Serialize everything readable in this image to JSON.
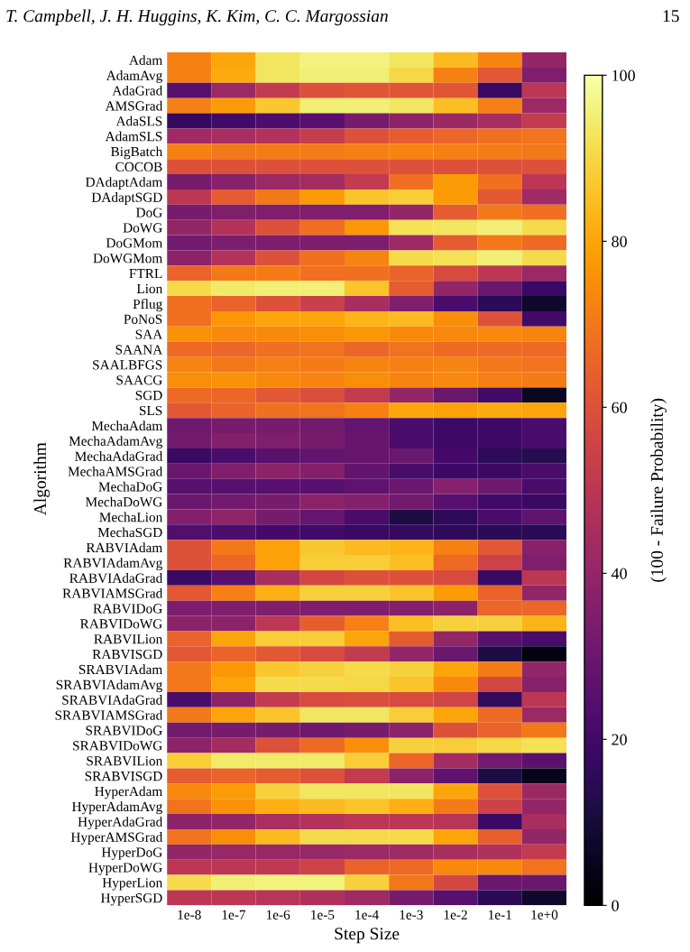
{
  "chart_data": {
    "type": "heatmap",
    "xlabel": "Step Size",
    "ylabel": "Algorithm",
    "clabel": "(100 - Failure Probability)",
    "annotations": [
      "T. Campbell, J. H. Huggins, K. Kim, C. C. Margossian",
      "15"
    ],
    "categories": [
      "1e-8",
      "1e-7",
      "1e-6",
      "1e-5",
      "1e-4",
      "1e-3",
      "1e-2",
      "1e-1",
      "1e+0"
    ],
    "y_categories": [
      "Adam",
      "AdamAvg",
      "AdaGrad",
      "AMSGrad",
      "AdaSLS",
      "AdamSLS",
      "BigBatch",
      "COCOB",
      "DAdaptAdam",
      "DAdaptSGD",
      "DoG",
      "DoWG",
      "DoGMom",
      "DoWGMom",
      "FTRL",
      "Lion",
      "Pflug",
      "PoNoS",
      "SAA",
      "SAANA",
      "SAALBFGS",
      "SAACG",
      "SGD",
      "SLS",
      "MechaAdam",
      "MechaAdamAvg",
      "MechaAdaGrad",
      "MechaAMSGrad",
      "MechaDoG",
      "MechaDoWG",
      "MechaLion",
      "MechaSGD",
      "RABVIAdam",
      "RABVIAdamAvg",
      "RABVIAdaGrad",
      "RABVIAMSGrad",
      "RABVIDoG",
      "RABVIDoWG",
      "RABVILion",
      "RABVISGD",
      "SRABVIAdam",
      "SRABVIAdamAvg",
      "SRABVIAdaGrad",
      "SRABVIAMSGrad",
      "SRABVIDoG",
      "SRABVIDoWG",
      "SRABVILion",
      "SRABVISGD",
      "HyperAdam",
      "HyperAdamAvg",
      "HyperAdaGrad",
      "HyperAMSGrad",
      "HyperDoG",
      "HyperDoWG",
      "HyperLion",
      "HyperSGD"
    ],
    "cells": [
      [
        72,
        80,
        93,
        96,
        96,
        93,
        84,
        73,
        40
      ],
      [
        72,
        81,
        93,
        95,
        95,
        90,
        72,
        62,
        35
      ],
      [
        25,
        42,
        52,
        60,
        61,
        61,
        61,
        18,
        50
      ],
      [
        72,
        78,
        87,
        95,
        95,
        93,
        85,
        72,
        42
      ],
      [
        17,
        20,
        23,
        25,
        33,
        38,
        42,
        45,
        52
      ],
      [
        43,
        45,
        48,
        53,
        60,
        63,
        66,
        68,
        69
      ],
      [
        72,
        70,
        71,
        71,
        72,
        73,
        72,
        71,
        70
      ],
      [
        60,
        60,
        60,
        60,
        60,
        60,
        60,
        60,
        60
      ],
      [
        33,
        37,
        42,
        44,
        52,
        68,
        78,
        68,
        50
      ],
      [
        50,
        63,
        70,
        78,
        86,
        88,
        78,
        62,
        43
      ],
      [
        33,
        35,
        35,
        35,
        35,
        40,
        63,
        70,
        68
      ],
      [
        40,
        48,
        60,
        68,
        77,
        92,
        93,
        95,
        91
      ],
      [
        32,
        34,
        34,
        34,
        34,
        42,
        63,
        70,
        67
      ],
      [
        38,
        48,
        60,
        68,
        73,
        91,
        92,
        95,
        91
      ],
      [
        65,
        70,
        71,
        68,
        68,
        65,
        58,
        50,
        42
      ],
      [
        91,
        94,
        95,
        95,
        86,
        63,
        40,
        30,
        18
      ],
      [
        68,
        65,
        60,
        54,
        45,
        35,
        22,
        15,
        8
      ],
      [
        68,
        77,
        80,
        80,
        83,
        84,
        75,
        60,
        20
      ],
      [
        76,
        74,
        74,
        75,
        77,
        74,
        74,
        74,
        73
      ],
      [
        67,
        66,
        68,
        69,
        66,
        69,
        67,
        67,
        67
      ],
      [
        73,
        70,
        72,
        71,
        73,
        72,
        73,
        70,
        69
      ],
      [
        75,
        76,
        74,
        73,
        75,
        73,
        74,
        72,
        71
      ],
      [
        67,
        66,
        62,
        59,
        52,
        40,
        30,
        20,
        6
      ],
      [
        62,
        65,
        68,
        69,
        72,
        80,
        79,
        81,
        80
      ],
      [
        31,
        33,
        33,
        32,
        28,
        22,
        19,
        19,
        22
      ],
      [
        32,
        36,
        35,
        33,
        29,
        22,
        19,
        19,
        22
      ],
      [
        18,
        22,
        26,
        28,
        29,
        30,
        21,
        15,
        14
      ],
      [
        30,
        35,
        38,
        36,
        28,
        22,
        19,
        19,
        22
      ],
      [
        25,
        25,
        25,
        25,
        27,
        30,
        37,
        31,
        22
      ],
      [
        30,
        32,
        33,
        38,
        36,
        32,
        25,
        20,
        18
      ],
      [
        36,
        39,
        33,
        29,
        22,
        12,
        16,
        22,
        27
      ],
      [
        24,
        23,
        21,
        20,
        18,
        17,
        16,
        15,
        15
      ],
      [
        60,
        70,
        79,
        87,
        84,
        83,
        72,
        62,
        37
      ],
      [
        60,
        66,
        79,
        88,
        88,
        85,
        67,
        55,
        35
      ],
      [
        18,
        25,
        45,
        57,
        60,
        60,
        58,
        18,
        50
      ],
      [
        62,
        72,
        82,
        89,
        89,
        86,
        78,
        65,
        40
      ],
      [
        34,
        35,
        35,
        35,
        35,
        36,
        38,
        66,
        66
      ],
      [
        38,
        38,
        50,
        64,
        72,
        85,
        89,
        89,
        83
      ],
      [
        65,
        80,
        88,
        88,
        80,
        63,
        40,
        25,
        22
      ],
      [
        62,
        65,
        62,
        58,
        52,
        40,
        30,
        12,
        3
      ],
      [
        70,
        77,
        87,
        89,
        91,
        89,
        80,
        71,
        40
      ],
      [
        70,
        80,
        91,
        91,
        90,
        86,
        74,
        57,
        37
      ],
      [
        22,
        38,
        52,
        58,
        59,
        58,
        56,
        17,
        50
      ],
      [
        70,
        80,
        86,
        93,
        93,
        88,
        80,
        67,
        42
      ],
      [
        32,
        33,
        33,
        31,
        33,
        38,
        60,
        65,
        70
      ],
      [
        38,
        44,
        60,
        67,
        75,
        89,
        88,
        90,
        92
      ],
      [
        88,
        94,
        94,
        94,
        88,
        66,
        44,
        32,
        26
      ],
      [
        63,
        65,
        63,
        60,
        52,
        38,
        27,
        12,
        5
      ],
      [
        74,
        78,
        89,
        93,
        93,
        93,
        80,
        60,
        42
      ],
      [
        69,
        76,
        82,
        84,
        86,
        82,
        71,
        55,
        40
      ],
      [
        38,
        40,
        46,
        48,
        50,
        50,
        49,
        18,
        45
      ],
      [
        69,
        75,
        84,
        91,
        91,
        91,
        80,
        64,
        40
      ],
      [
        40,
        41,
        41,
        41,
        42,
        43,
        45,
        47,
        52
      ],
      [
        50,
        50,
        51,
        55,
        65,
        67,
        74,
        74,
        69
      ],
      [
        91,
        95,
        96,
        96,
        89,
        70,
        57,
        30,
        30
      ],
      [
        50,
        50,
        49,
        47,
        43,
        33,
        25,
        15,
        8
      ]
    ],
    "clim": [
      0,
      100
    ],
    "cticks": [
      0,
      20,
      40,
      60,
      80,
      100
    ]
  }
}
